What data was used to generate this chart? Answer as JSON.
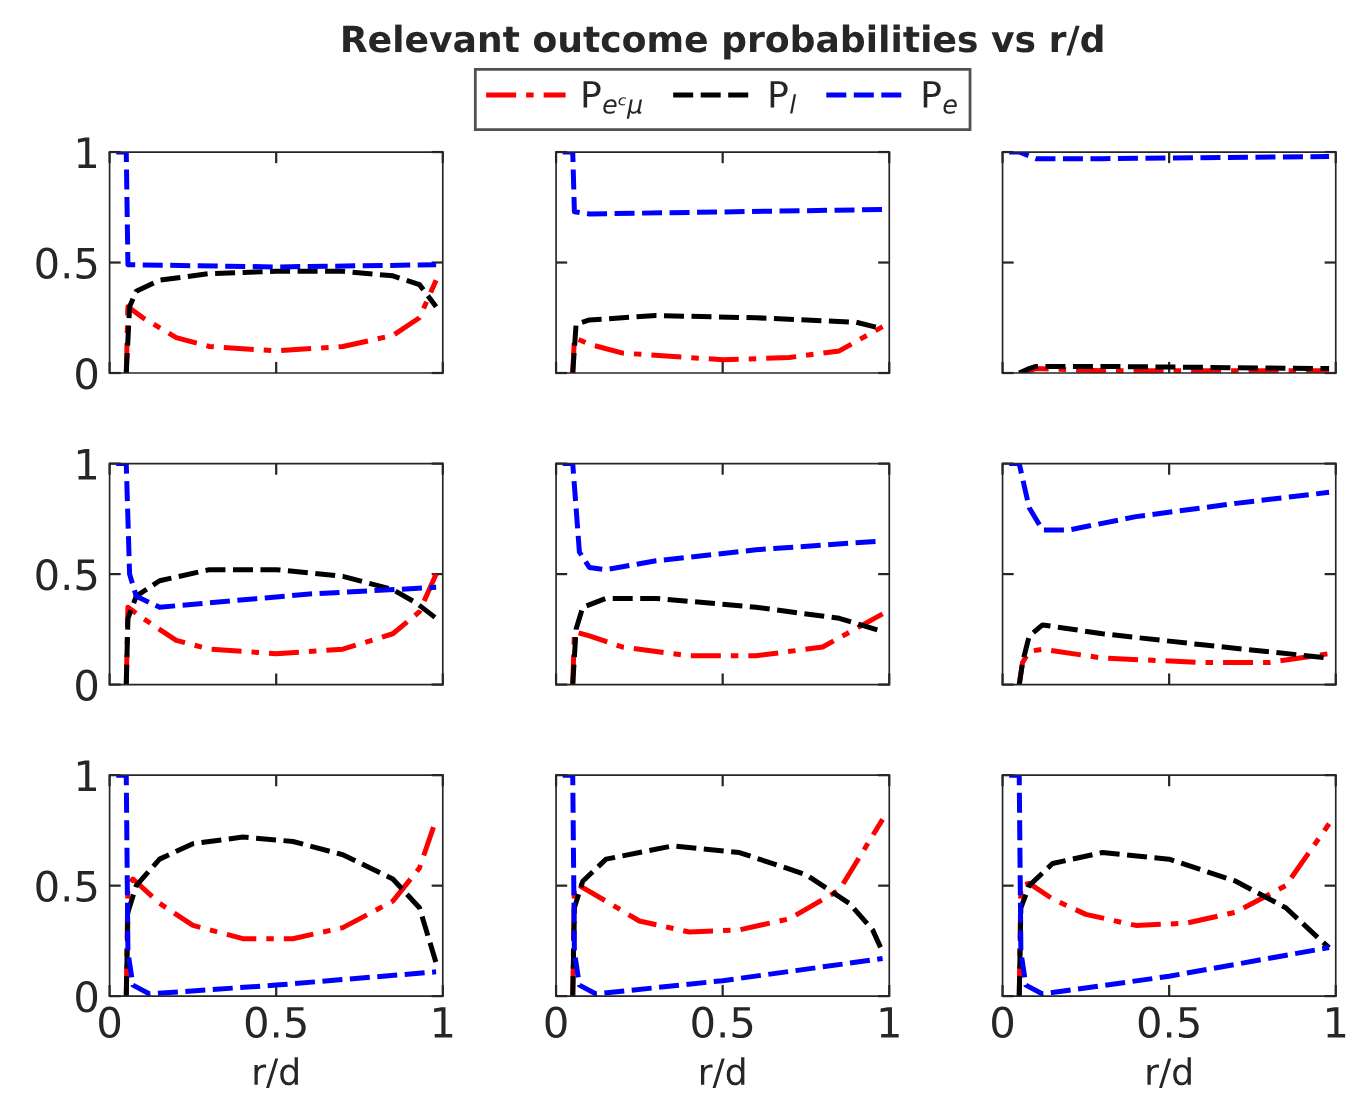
{
  "chart_data": [
    {
      "type": "line",
      "xlim": [
        0,
        1
      ],
      "ylim": [
        0,
        1
      ],
      "xticks": [
        0,
        0.5,
        1
      ],
      "yticks": [
        0,
        0.5,
        1
      ],
      "tick_labels": "y",
      "grid": false,
      "series": [
        {
          "color": "#ff0000",
          "line_style": "dashdot",
          "x": [
            0.05,
            0.055,
            0.1,
            0.2,
            0.3,
            0.5,
            0.7,
            0.85,
            0.93,
            0.98
          ],
          "values": [
            0,
            0.3,
            0.25,
            0.16,
            0.12,
            0.1,
            0.12,
            0.17,
            0.25,
            0.42
          ]
        },
        {
          "color": "#000000",
          "line_style": "dashed",
          "x": [
            0.05,
            0.06,
            0.08,
            0.15,
            0.3,
            0.5,
            0.7,
            0.85,
            0.93,
            0.98
          ],
          "values": [
            0,
            0.3,
            0.37,
            0.42,
            0.45,
            0.46,
            0.46,
            0.44,
            0.4,
            0.3
          ]
        },
        {
          "color": "#0000ff",
          "line_style": "dashed",
          "x": [
            0.02,
            0.05,
            0.055,
            0.5,
            0.98
          ],
          "values": [
            1,
            1,
            0.49,
            0.48,
            0.49
          ]
        }
      ]
    },
    {
      "type": "line",
      "title": "Relevant outcome probabilities vs r/d",
      "legend": "top",
      "xlim": [
        0,
        1
      ],
      "ylim": [
        0,
        1
      ],
      "xticks": [
        0,
        0.5,
        1
      ],
      "yticks": [
        0,
        0.5,
        1
      ],
      "tick_labels": false,
      "grid": false,
      "series": [
        {
          "name": "P$_{eᶜμ}$",
          "color": "#ff0000",
          "line_style": "dashdot",
          "x": [
            0.05,
            0.055,
            0.1,
            0.2,
            0.5,
            0.7,
            0.85,
            0.98
          ],
          "values": [
            0,
            0.16,
            0.13,
            0.09,
            0.06,
            0.07,
            0.1,
            0.21
          ]
        },
        {
          "name": "P$_{l}$",
          "color": "#000000",
          "line_style": "dashed",
          "x": [
            0.05,
            0.06,
            0.1,
            0.3,
            0.6,
            0.9,
            0.98
          ],
          "values": [
            0,
            0.22,
            0.24,
            0.26,
            0.25,
            0.23,
            0.2
          ]
        },
        {
          "name": "P$_{e}$",
          "color": "#0000ff",
          "line_style": "dashed",
          "x": [
            0.02,
            0.05,
            0.055,
            0.1,
            0.98
          ],
          "values": [
            1,
            1,
            0.73,
            0.72,
            0.74
          ]
        }
      ]
    },
    {
      "type": "line",
      "xlim": [
        0,
        1
      ],
      "ylim": [
        0,
        1
      ],
      "xticks": [
        0,
        0.5,
        1
      ],
      "yticks": [
        0,
        0.5,
        1
      ],
      "tick_labels": false,
      "grid": false,
      "series": [
        {
          "color": "#ff0000",
          "line_style": "dashdot",
          "x": [
            0.05,
            0.08,
            0.1,
            0.3,
            0.98
          ],
          "values": [
            0,
            0.01,
            0.02,
            0.01,
            0.01
          ]
        },
        {
          "color": "#000000",
          "line_style": "dashed",
          "x": [
            0.05,
            0.08,
            0.1,
            0.3,
            0.98
          ],
          "values": [
            0,
            0.02,
            0.03,
            0.03,
            0.02
          ]
        },
        {
          "color": "#0000ff",
          "line_style": "dashed",
          "x": [
            0.02,
            0.05,
            0.1,
            0.3,
            0.98
          ],
          "values": [
            1,
            1,
            0.97,
            0.97,
            0.98
          ]
        }
      ]
    },
    {
      "type": "line",
      "xlim": [
        0,
        1
      ],
      "ylim": [
        0,
        1
      ],
      "xticks": [
        0,
        0.5,
        1
      ],
      "yticks": [
        0,
        0.5,
        1
      ],
      "tick_labels": "y",
      "grid": false,
      "series": [
        {
          "color": "#ff0000",
          "line_style": "dashdot",
          "x": [
            0.05,
            0.055,
            0.1,
            0.2,
            0.3,
            0.5,
            0.7,
            0.85,
            0.93,
            0.98
          ],
          "values": [
            0,
            0.35,
            0.3,
            0.2,
            0.16,
            0.14,
            0.16,
            0.23,
            0.33,
            0.5
          ]
        },
        {
          "color": "#000000",
          "line_style": "dashed",
          "x": [
            0.05,
            0.055,
            0.08,
            0.15,
            0.3,
            0.5,
            0.7,
            0.85,
            0.92,
            0.98
          ],
          "values": [
            0,
            0.3,
            0.4,
            0.47,
            0.52,
            0.52,
            0.49,
            0.43,
            0.37,
            0.3
          ]
        },
        {
          "color": "#0000ff",
          "line_style": "dashed",
          "x": [
            0.02,
            0.05,
            0.06,
            0.08,
            0.15,
            0.3,
            0.6,
            0.98
          ],
          "values": [
            1,
            1,
            0.5,
            0.4,
            0.35,
            0.37,
            0.41,
            0.44
          ]
        }
      ]
    },
    {
      "type": "line",
      "xlim": [
        0,
        1
      ],
      "ylim": [
        0,
        1
      ],
      "xticks": [
        0,
        0.5,
        1
      ],
      "yticks": [
        0,
        0.5,
        1
      ],
      "tick_labels": false,
      "grid": false,
      "series": [
        {
          "color": "#ff0000",
          "line_style": "dashdot",
          "x": [
            0.05,
            0.055,
            0.1,
            0.2,
            0.4,
            0.6,
            0.8,
            0.98
          ],
          "values": [
            0,
            0.24,
            0.22,
            0.17,
            0.13,
            0.13,
            0.17,
            0.32
          ]
        },
        {
          "color": "#000000",
          "line_style": "dashed",
          "x": [
            0.05,
            0.06,
            0.08,
            0.15,
            0.3,
            0.6,
            0.85,
            0.98
          ],
          "values": [
            0,
            0.25,
            0.35,
            0.39,
            0.39,
            0.35,
            0.3,
            0.24
          ]
        },
        {
          "color": "#0000ff",
          "line_style": "dashed",
          "x": [
            0.02,
            0.05,
            0.07,
            0.1,
            0.15,
            0.3,
            0.6,
            0.98
          ],
          "values": [
            1,
            1,
            0.6,
            0.53,
            0.52,
            0.56,
            0.61,
            0.65
          ]
        }
      ]
    },
    {
      "type": "line",
      "xlim": [
        0,
        1
      ],
      "ylim": [
        0,
        1
      ],
      "xticks": [
        0,
        0.5,
        1
      ],
      "yticks": [
        0,
        0.5,
        1
      ],
      "tick_labels": false,
      "grid": false,
      "series": [
        {
          "color": "#ff0000",
          "line_style": "dashdot",
          "x": [
            0.05,
            0.06,
            0.08,
            0.12,
            0.3,
            0.6,
            0.8,
            0.98
          ],
          "values": [
            0,
            0.1,
            0.15,
            0.16,
            0.12,
            0.1,
            0.1,
            0.14
          ]
        },
        {
          "color": "#000000",
          "line_style": "dashed",
          "x": [
            0.05,
            0.06,
            0.08,
            0.12,
            0.3,
            0.6,
            0.98
          ],
          "values": [
            0,
            0.1,
            0.22,
            0.27,
            0.23,
            0.18,
            0.12
          ]
        },
        {
          "color": "#0000ff",
          "line_style": "dashed",
          "x": [
            0.02,
            0.05,
            0.08,
            0.12,
            0.2,
            0.4,
            0.7,
            0.98
          ],
          "values": [
            1,
            1,
            0.8,
            0.7,
            0.7,
            0.76,
            0.82,
            0.87
          ]
        }
      ]
    },
    {
      "type": "line",
      "xlabel": "r/d",
      "xlim": [
        0,
        1
      ],
      "ylim": [
        0,
        1
      ],
      "xticks": [
        0,
        0.5,
        1
      ],
      "yticks": [
        0,
        0.5,
        1
      ],
      "grid": false,
      "series": [
        {
          "color": "#ff0000",
          "line_style": "dashdot",
          "x": [
            0.05,
            0.055,
            0.07,
            0.15,
            0.25,
            0.4,
            0.55,
            0.7,
            0.85,
            0.93,
            0.98
          ],
          "values": [
            0,
            0.5,
            0.53,
            0.42,
            0.32,
            0.26,
            0.26,
            0.31,
            0.43,
            0.58,
            0.8
          ]
        },
        {
          "color": "#000000",
          "line_style": "dashed",
          "x": [
            0.05,
            0.055,
            0.08,
            0.15,
            0.25,
            0.4,
            0.55,
            0.7,
            0.85,
            0.93,
            0.98
          ],
          "values": [
            0,
            0.38,
            0.5,
            0.62,
            0.69,
            0.72,
            0.7,
            0.64,
            0.53,
            0.4,
            0.15
          ]
        },
        {
          "color": "#0000ff",
          "line_style": "dashed",
          "x": [
            0.02,
            0.05,
            0.055,
            0.07,
            0.12,
            0.5,
            0.98
          ],
          "values": [
            1,
            1,
            0.2,
            0.05,
            0.01,
            0.05,
            0.11
          ]
        }
      ]
    },
    {
      "type": "line",
      "xlabel": "r/d",
      "xlim": [
        0,
        1
      ],
      "ylim": [
        0,
        1
      ],
      "xticks": [
        0,
        0.5,
        1
      ],
      "yticks": [
        0,
        0.5,
        1
      ],
      "tick_labels": "x",
      "grid": false,
      "series": [
        {
          "color": "#ff0000",
          "line_style": "dashdot",
          "x": [
            0.05,
            0.055,
            0.07,
            0.15,
            0.25,
            0.4,
            0.55,
            0.7,
            0.85,
            0.98
          ],
          "values": [
            0,
            0.5,
            0.5,
            0.43,
            0.34,
            0.29,
            0.3,
            0.35,
            0.48,
            0.8
          ]
        },
        {
          "color": "#000000",
          "line_style": "dashed",
          "x": [
            0.05,
            0.055,
            0.08,
            0.15,
            0.35,
            0.55,
            0.75,
            0.88,
            0.95,
            0.98
          ],
          "values": [
            0,
            0.4,
            0.52,
            0.62,
            0.68,
            0.65,
            0.55,
            0.42,
            0.3,
            0.2
          ]
        },
        {
          "color": "#0000ff",
          "line_style": "dashed",
          "x": [
            0.02,
            0.05,
            0.055,
            0.07,
            0.12,
            0.5,
            0.98
          ],
          "values": [
            1,
            1,
            0.2,
            0.05,
            0.01,
            0.07,
            0.17
          ]
        }
      ]
    },
    {
      "type": "line",
      "xlabel": "r/d",
      "xlim": [
        0,
        1
      ],
      "ylim": [
        0,
        1
      ],
      "xticks": [
        0,
        0.5,
        1
      ],
      "yticks": [
        0,
        0.5,
        1
      ],
      "tick_labels": "x",
      "grid": false,
      "series": [
        {
          "color": "#ff0000",
          "line_style": "dashdot",
          "x": [
            0.05,
            0.055,
            0.08,
            0.15,
            0.25,
            0.4,
            0.55,
            0.7,
            0.85,
            0.98
          ],
          "values": [
            0,
            0.5,
            0.51,
            0.44,
            0.37,
            0.32,
            0.33,
            0.38,
            0.5,
            0.78
          ]
        },
        {
          "color": "#000000",
          "line_style": "dashed",
          "x": [
            0.05,
            0.055,
            0.08,
            0.15,
            0.3,
            0.5,
            0.7,
            0.85,
            0.95,
            0.98
          ],
          "values": [
            0,
            0.4,
            0.5,
            0.6,
            0.65,
            0.62,
            0.52,
            0.4,
            0.26,
            0.22
          ]
        },
        {
          "color": "#0000ff",
          "line_style": "dashed",
          "x": [
            0.02,
            0.05,
            0.055,
            0.07,
            0.12,
            0.5,
            0.98
          ],
          "values": [
            1,
            1,
            0.2,
            0.05,
            0.01,
            0.09,
            0.22
          ]
        }
      ]
    }
  ]
}
